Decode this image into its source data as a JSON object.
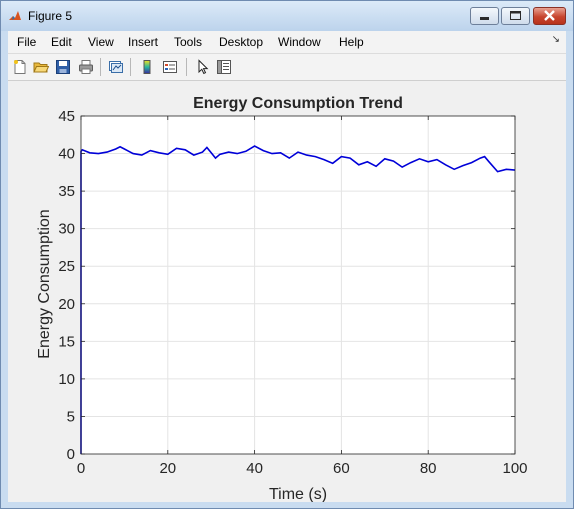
{
  "window": {
    "title": "Figure 5",
    "controls": {
      "minimize_icon": "minimize-icon",
      "maximize_icon": "maximize-icon",
      "close_icon": "close-icon"
    }
  },
  "menu": {
    "items": [
      "File",
      "Edit",
      "View",
      "Insert",
      "Tools",
      "Desktop",
      "Window",
      "Help"
    ]
  },
  "toolbar": {
    "icons": [
      "new-figure-icon",
      "open-file-icon",
      "save-icon",
      "print-icon",
      "link-plot-icon",
      "insert-colorbar-icon",
      "insert-legend-icon",
      "edit-plot-icon",
      "property-inspector-icon"
    ]
  },
  "colors": {
    "line": "#0000d8",
    "grid": "#e4e4e4",
    "axes_bg": "#ffffff",
    "figure_bg": "#f0f0f0"
  },
  "chart_data": {
    "type": "line",
    "title": "Energy Consumption Trend",
    "xlabel": "Time (s)",
    "ylabel": "Energy Consumption",
    "xlim": [
      0,
      100
    ],
    "ylim": [
      0,
      45
    ],
    "xticks": [
      0,
      20,
      40,
      60,
      80,
      100
    ],
    "yticks": [
      0,
      5,
      10,
      15,
      20,
      25,
      30,
      35,
      40,
      45
    ],
    "grid": true,
    "series": [
      {
        "color": "#0000d8",
        "x": [
          0,
          0,
          0.3,
          2,
          4,
          6,
          8,
          9,
          10,
          12,
          14,
          16,
          18,
          20,
          22,
          24,
          26,
          28,
          29,
          30,
          31,
          32,
          34,
          36,
          38,
          40,
          42,
          44,
          46,
          48,
          50,
          52,
          54,
          56,
          58,
          60,
          62,
          64,
          66,
          68,
          70,
          72,
          74,
          76,
          78,
          80,
          82,
          84,
          86,
          88,
          90,
          92,
          93,
          94,
          96,
          98,
          100
        ],
        "y": [
          0,
          40.3,
          40.5,
          40.1,
          40.0,
          40.2,
          40.6,
          40.9,
          40.6,
          40.0,
          39.8,
          40.4,
          40.1,
          39.9,
          40.7,
          40.5,
          39.8,
          40.2,
          40.8,
          40.1,
          39.4,
          39.9,
          40.2,
          40.0,
          40.3,
          41.0,
          40.4,
          40.0,
          40.1,
          39.4,
          40.2,
          39.8,
          39.6,
          39.2,
          38.7,
          39.6,
          39.4,
          38.5,
          38.9,
          38.3,
          39.3,
          39.0,
          38.2,
          38.8,
          39.3,
          38.9,
          39.2,
          38.5,
          37.9,
          38.4,
          38.8,
          39.4,
          39.6,
          38.9,
          37.6,
          37.9,
          37.8
        ]
      }
    ]
  }
}
